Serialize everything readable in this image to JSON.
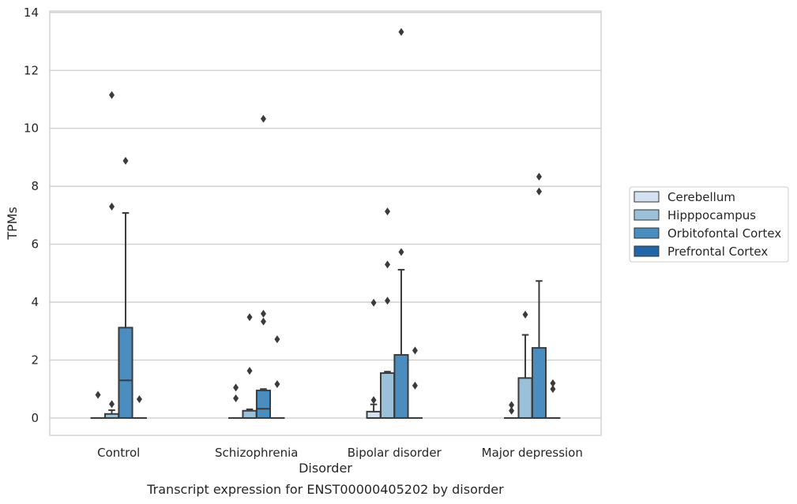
{
  "chart_data": {
    "type": "box",
    "caption": "Transcript expression for ENST00000405202 by disorder",
    "xlabel": "Disorder",
    "ylabel": "TPMs",
    "ylim": [
      -0.6,
      14.05
    ],
    "yticks": [
      0,
      2,
      4,
      6,
      8,
      10,
      12,
      14
    ],
    "grid": true,
    "legend_position": "right",
    "categories": [
      "Control",
      "Schizophrenia",
      "Bipolar disorder",
      "Major depression"
    ],
    "series": [
      {
        "name": "Cerebellum",
        "color": "#d3e1f0",
        "boxes": [
          {
            "q1": 0,
            "median": 0,
            "q3": 0,
            "whisker_low": 0,
            "whisker_high": 0,
            "outliers": [
              0.8
            ]
          },
          {
            "q1": 0,
            "median": 0,
            "q3": 0,
            "whisker_low": 0,
            "whisker_high": 0,
            "outliers": [
              1.05,
              0.68
            ]
          },
          {
            "q1": 0,
            "median": 0,
            "q3": 0.22,
            "whisker_low": 0,
            "whisker_high": 0.47,
            "outliers": [
              3.98,
              0.62
            ]
          },
          {
            "q1": 0,
            "median": 0,
            "q3": 0,
            "whisker_low": 0,
            "whisker_high": 0,
            "outliers": [
              0.45,
              0.25
            ]
          }
        ]
      },
      {
        "name": "Hipppocampus",
        "color": "#9ac1d9",
        "boxes": [
          {
            "q1": 0,
            "median": 0,
            "q3": 0.14,
            "whisker_low": 0,
            "whisker_high": 0.27,
            "outliers": [
              11.15,
              7.3,
              0.48
            ]
          },
          {
            "q1": 0,
            "median": 0,
            "q3": 0.25,
            "whisker_low": 0,
            "whisker_high": 0.3,
            "outliers": [
              3.48,
              1.63
            ]
          },
          {
            "q1": 0,
            "median": 0,
            "q3": 1.55,
            "whisker_low": 0,
            "whisker_high": 1.6,
            "outliers": [
              7.13,
              5.3,
              4.05
            ]
          },
          {
            "q1": 0,
            "median": 0,
            "q3": 1.38,
            "whisker_low": 0,
            "whisker_high": 2.87,
            "outliers": [
              3.57
            ]
          }
        ]
      },
      {
        "name": "Orbitofontal Cortex",
        "color": "#4b8dbf",
        "boxes": [
          {
            "q1": 0,
            "median": 1.3,
            "q3": 3.12,
            "whisker_low": 0,
            "whisker_high": 7.08,
            "outliers": [
              8.88
            ]
          },
          {
            "q1": 0,
            "median": 0.32,
            "q3": 0.95,
            "whisker_low": 0,
            "whisker_high": 1.0,
            "outliers": [
              10.33,
              3.6,
              3.33
            ]
          },
          {
            "q1": 0,
            "median": 0,
            "q3": 2.18,
            "whisker_low": 0,
            "whisker_high": 5.12,
            "outliers": [
              13.33,
              5.73
            ]
          },
          {
            "q1": 0,
            "median": 0,
            "q3": 2.42,
            "whisker_low": 0,
            "whisker_high": 4.73,
            "outliers": [
              8.33,
              7.82
            ]
          }
        ]
      },
      {
        "name": "Prefrontal Cortex",
        "color": "#2166a7",
        "boxes": [
          {
            "q1": 0,
            "median": 0,
            "q3": 0,
            "whisker_low": 0,
            "whisker_high": 0,
            "outliers": [
              0.65
            ]
          },
          {
            "q1": 0,
            "median": 0,
            "q3": 0,
            "whisker_low": 0,
            "whisker_high": 0,
            "outliers": [
              2.72,
              1.17
            ]
          },
          {
            "q1": 0,
            "median": 0,
            "q3": 0,
            "whisker_low": 0,
            "whisker_high": 0,
            "outliers": [
              2.33,
              1.12
            ]
          },
          {
            "q1": 0,
            "median": 0,
            "q3": 0,
            "whisker_low": 0,
            "whisker_high": 0,
            "outliers": [
              1.2,
              1.0
            ]
          }
        ]
      }
    ]
  }
}
